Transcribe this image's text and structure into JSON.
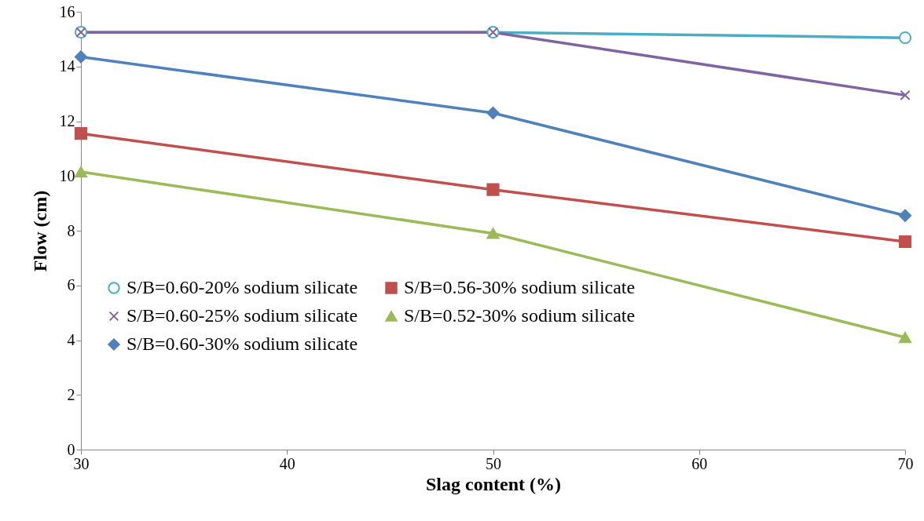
{
  "chart_data": {
    "type": "line",
    "xlabel": "Slag content (%)",
    "ylabel": "Flow (cm)",
    "x": [
      30,
      50,
      70
    ],
    "xlim": [
      30,
      70
    ],
    "xticks": [
      30,
      40,
      50,
      60,
      70
    ],
    "ylim": [
      0,
      16
    ],
    "yticks": [
      0,
      2,
      4,
      6,
      8,
      10,
      12,
      14,
      16
    ],
    "grid": false,
    "legend": "bottom left",
    "line_style": "solid",
    "series": [
      {
        "name": "S/B=0.60-20% sodium silicate",
        "color": "#4bacc6",
        "marker": "circle",
        "values": [
          15.25,
          15.25,
          15.05
        ]
      },
      {
        "name": "S/B=0.60-25% sodium silicate",
        "color": "#8064a2",
        "marker": "cross",
        "values": [
          15.25,
          15.25,
          12.95
        ]
      },
      {
        "name": "S/B=0.60-30% sodium silicate",
        "color": "#4f81bd",
        "marker": "diamond",
        "values": [
          14.35,
          12.3,
          8.55
        ]
      },
      {
        "name": "S/B=0.56-30% sodium silicate",
        "color": "#c0504d",
        "marker": "square",
        "values": [
          11.55,
          9.5,
          7.6
        ]
      },
      {
        "name": "S/B=0.52-30% sodium silicate",
        "color": "#9bbb59",
        "marker": "triangle",
        "values": [
          10.15,
          7.9,
          4.1
        ]
      }
    ]
  }
}
